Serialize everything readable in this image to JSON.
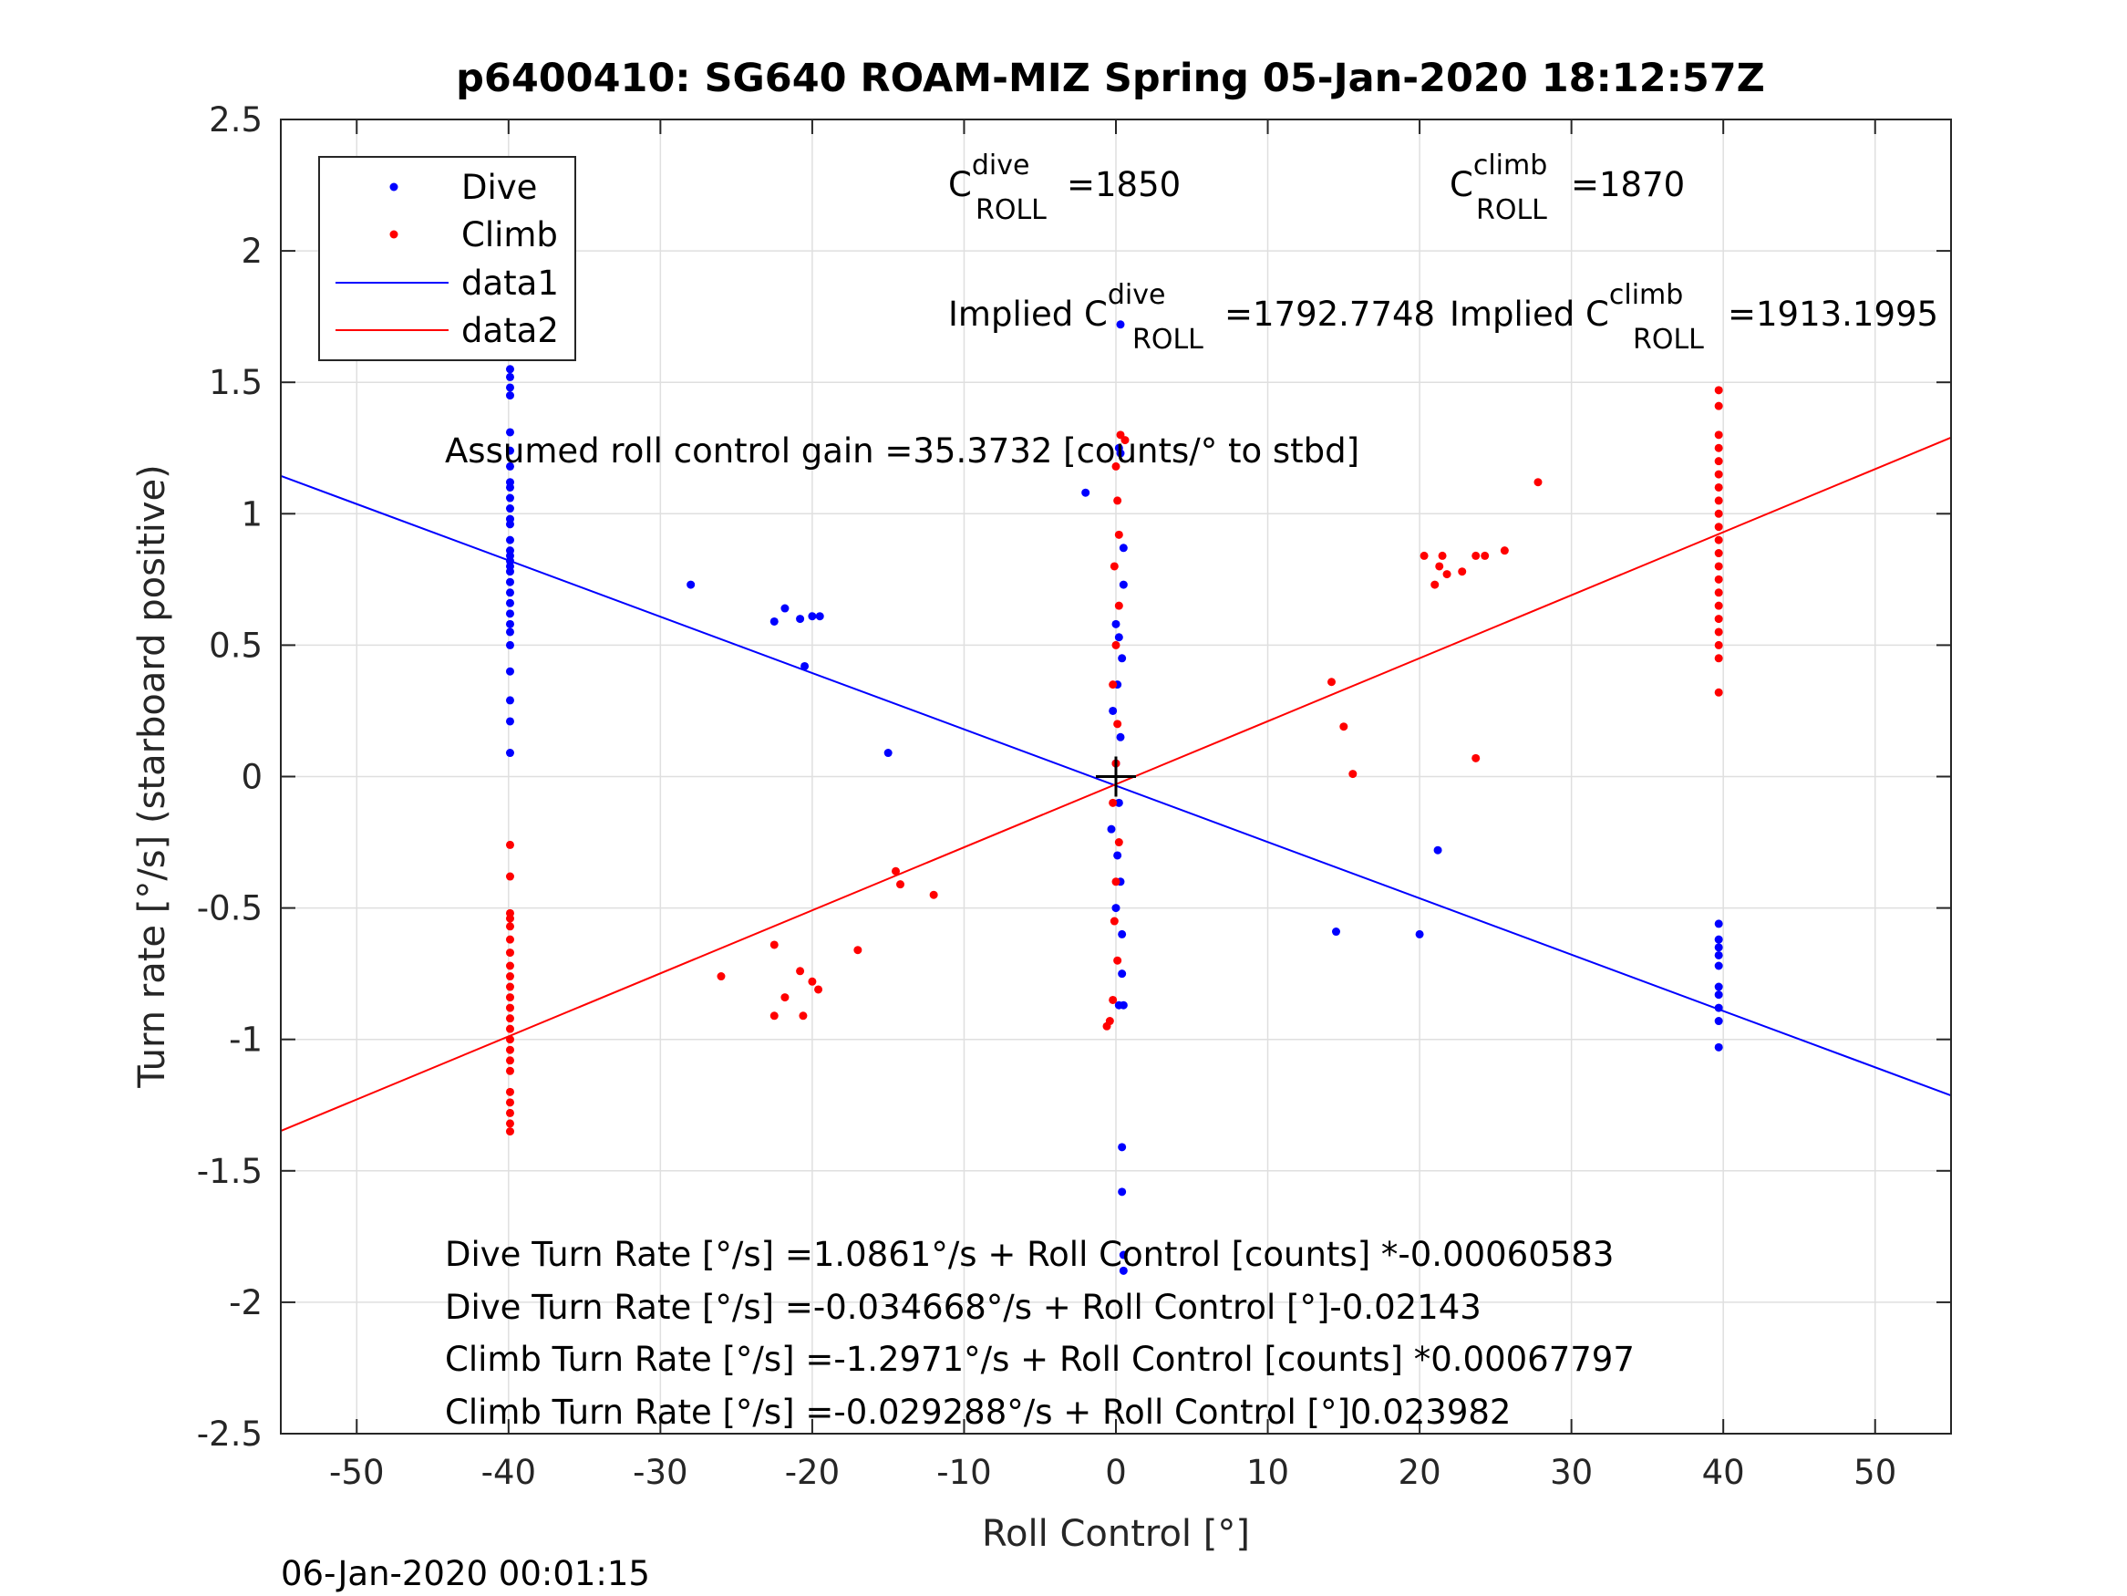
{
  "chart_data": {
    "type": "scatter",
    "title": "p6400410: SG640 ROAM-MIZ Spring 05-Jan-2020 18:12:57Z",
    "xlabel": "Roll Control [°]",
    "ylabel": "Turn rate [°/s] (starboard positive)",
    "xlim": [
      -55,
      55
    ],
    "ylim": [
      -2.5,
      2.5
    ],
    "xticks": [
      -50,
      -40,
      -30,
      -20,
      -10,
      0,
      10,
      20,
      30,
      40,
      50
    ],
    "yticks": [
      -2.5,
      -2,
      -1.5,
      -1,
      -0.5,
      0,
      0.5,
      1,
      1.5,
      2,
      2.5
    ],
    "xtick_labels": [
      "-50",
      "-40",
      "-30",
      "-20",
      "-10",
      "0",
      "10",
      "20",
      "30",
      "40",
      "50"
    ],
    "ytick_labels": [
      "-2.5",
      "-2",
      "-1.5",
      "-1",
      "-0.5",
      "0",
      "0.5",
      "1",
      "1.5",
      "2",
      "2.5"
    ],
    "grid": true,
    "legend_position": "top-left",
    "timestamp": "06-Jan-2020 00:01:15",
    "colors": {
      "dive": "#0000ff",
      "climb": "#ff0000",
      "marker": "#000000"
    },
    "series": [
      {
        "name": "Dive",
        "kind": "points",
        "color": "#0000ff",
        "points": [
          [
            -39.9,
            1.55
          ],
          [
            -39.9,
            1.52
          ],
          [
            -39.9,
            1.48
          ],
          [
            -39.9,
            1.45
          ],
          [
            -39.9,
            1.31
          ],
          [
            -39.9,
            1.24
          ],
          [
            -39.9,
            1.18
          ],
          [
            -39.9,
            1.12
          ],
          [
            -39.9,
            1.1
          ],
          [
            -39.9,
            1.06
          ],
          [
            -39.9,
            1.02
          ],
          [
            -39.9,
            0.98
          ],
          [
            -39.9,
            0.96
          ],
          [
            -39.9,
            0.9
          ],
          [
            -39.9,
            0.86
          ],
          [
            -39.9,
            0.84
          ],
          [
            -39.9,
            0.82
          ],
          [
            -39.9,
            0.8
          ],
          [
            -39.9,
            0.78
          ],
          [
            -39.9,
            0.74
          ],
          [
            -39.9,
            0.7
          ],
          [
            -39.9,
            0.66
          ],
          [
            -39.9,
            0.62
          ],
          [
            -39.9,
            0.58
          ],
          [
            -39.9,
            0.55
          ],
          [
            -39.9,
            0.5
          ],
          [
            -39.9,
            0.4
          ],
          [
            -39.9,
            0.29
          ],
          [
            -39.9,
            0.21
          ],
          [
            -39.9,
            0.09
          ],
          [
            -28,
            0.73
          ],
          [
            -22.5,
            0.59
          ],
          [
            -21.8,
            0.64
          ],
          [
            -20.8,
            0.6
          ],
          [
            -20.5,
            0.42
          ],
          [
            -20,
            0.61
          ],
          [
            -19.5,
            0.61
          ],
          [
            -15,
            0.09
          ],
          [
            -2,
            1.08
          ],
          [
            0.3,
            1.72
          ],
          [
            0.2,
            1.25
          ],
          [
            0.3,
            1.23
          ],
          [
            0.5,
            0.87
          ],
          [
            0.5,
            0.73
          ],
          [
            0,
            0.58
          ],
          [
            0.2,
            0.53
          ],
          [
            0.4,
            0.45
          ],
          [
            0.1,
            0.35
          ],
          [
            -0.2,
            0.25
          ],
          [
            0.3,
            0.15
          ],
          [
            0,
            0.05
          ],
          [
            0.2,
            -0.1
          ],
          [
            -0.3,
            -0.2
          ],
          [
            0.1,
            -0.3
          ],
          [
            0.3,
            -0.4
          ],
          [
            0,
            -0.5
          ],
          [
            0.4,
            -0.6
          ],
          [
            0.4,
            -0.75
          ],
          [
            0.2,
            -0.87
          ],
          [
            0.5,
            -0.87
          ],
          [
            0.4,
            -1.41
          ],
          [
            0.4,
            -1.58
          ],
          [
            0.5,
            -1.82
          ],
          [
            0.5,
            -1.88
          ],
          [
            14.5,
            -0.59
          ],
          [
            20,
            -0.6
          ],
          [
            21.2,
            -0.28
          ],
          [
            39.7,
            -0.56
          ],
          [
            39.7,
            -0.62
          ],
          [
            39.7,
            -0.65
          ],
          [
            39.7,
            -0.68
          ],
          [
            39.7,
            -0.72
          ],
          [
            39.7,
            -0.8
          ],
          [
            39.7,
            -0.83
          ],
          [
            39.7,
            -0.88
          ],
          [
            39.7,
            -0.93
          ],
          [
            39.7,
            -1.03
          ]
        ]
      },
      {
        "name": "Climb",
        "kind": "points",
        "color": "#ff0000",
        "points": [
          [
            -39.9,
            -0.26
          ],
          [
            -39.9,
            -0.38
          ],
          [
            -39.9,
            -0.52
          ],
          [
            -39.9,
            -0.54
          ],
          [
            -39.9,
            -0.57
          ],
          [
            -39.9,
            -0.62
          ],
          [
            -39.9,
            -0.67
          ],
          [
            -39.9,
            -0.72
          ],
          [
            -39.9,
            -0.76
          ],
          [
            -39.9,
            -0.8
          ],
          [
            -39.9,
            -0.84
          ],
          [
            -39.9,
            -0.88
          ],
          [
            -39.9,
            -0.92
          ],
          [
            -39.9,
            -0.96
          ],
          [
            -39.9,
            -1.0
          ],
          [
            -39.9,
            -1.04
          ],
          [
            -39.9,
            -1.08
          ],
          [
            -39.9,
            -1.12
          ],
          [
            -39.9,
            -1.2
          ],
          [
            -39.9,
            -1.24
          ],
          [
            -39.9,
            -1.28
          ],
          [
            -39.9,
            -1.32
          ],
          [
            -39.9,
            -1.35
          ],
          [
            -26,
            -0.76
          ],
          [
            -22.5,
            -0.64
          ],
          [
            -22.5,
            -0.91
          ],
          [
            -21.8,
            -0.84
          ],
          [
            -20.8,
            -0.74
          ],
          [
            -20.6,
            -0.91
          ],
          [
            -20,
            -0.78
          ],
          [
            -19.6,
            -0.81
          ],
          [
            -17,
            -0.66
          ],
          [
            -14.5,
            -0.36
          ],
          [
            -14.2,
            -0.41
          ],
          [
            -12,
            -0.45
          ],
          [
            0.3,
            1.3
          ],
          [
            0.6,
            1.28
          ],
          [
            0,
            1.18
          ],
          [
            0.1,
            1.05
          ],
          [
            0.2,
            0.92
          ],
          [
            -0.1,
            0.8
          ],
          [
            0.2,
            0.65
          ],
          [
            0,
            0.5
          ],
          [
            -0.2,
            0.35
          ],
          [
            0.1,
            0.2
          ],
          [
            0,
            0.05
          ],
          [
            -0.2,
            -0.1
          ],
          [
            0.2,
            -0.25
          ],
          [
            0,
            -0.4
          ],
          [
            -0.1,
            -0.55
          ],
          [
            0.1,
            -0.7
          ],
          [
            -0.2,
            -0.85
          ],
          [
            -0.4,
            -0.93
          ],
          [
            -0.6,
            -0.95
          ],
          [
            14.2,
            0.36
          ],
          [
            15,
            0.19
          ],
          [
            15.6,
            0.01
          ],
          [
            20.3,
            0.84
          ],
          [
            21,
            0.73
          ],
          [
            21.5,
            0.84
          ],
          [
            21.3,
            0.8
          ],
          [
            21.8,
            0.77
          ],
          [
            22.8,
            0.78
          ],
          [
            23.7,
            0.84
          ],
          [
            24.3,
            0.84
          ],
          [
            25.6,
            0.86
          ],
          [
            23.7,
            0.07
          ],
          [
            27.8,
            1.12
          ],
          [
            39.7,
            1.47
          ],
          [
            39.7,
            1.41
          ],
          [
            39.7,
            1.3
          ],
          [
            39.7,
            1.25
          ],
          [
            39.7,
            1.2
          ],
          [
            39.7,
            1.15
          ],
          [
            39.7,
            1.1
          ],
          [
            39.7,
            1.05
          ],
          [
            39.7,
            1.0
          ],
          [
            39.7,
            0.95
          ],
          [
            39.7,
            0.9
          ],
          [
            39.7,
            0.85
          ],
          [
            39.7,
            0.8
          ],
          [
            39.7,
            0.75
          ],
          [
            39.7,
            0.7
          ],
          [
            39.7,
            0.65
          ],
          [
            39.7,
            0.6
          ],
          [
            39.7,
            0.55
          ],
          [
            39.7,
            0.5
          ],
          [
            39.7,
            0.45
          ],
          [
            39.7,
            0.32
          ]
        ]
      },
      {
        "name": "data1",
        "kind": "line",
        "color": "#0000ff",
        "intercept": -0.034668,
        "slope": -0.02143
      },
      {
        "name": "data2",
        "kind": "line",
        "color": "#ff0000",
        "intercept": -0.029288,
        "slope": 0.023982
      }
    ],
    "center_marker": {
      "x": 0,
      "y": 0
    },
    "annotations": {
      "c_roll_dive": {
        "base": "C",
        "sup": "dive",
        "sub": "ROLL",
        "value": "=1850"
      },
      "c_roll_climb": {
        "base": "C",
        "sup": "climb",
        "sub": "ROLL",
        "value": "=1870"
      },
      "implied_dive": {
        "base": "Implied C",
        "sup": "dive",
        "sub": "ROLL",
        "value": "=1792.7748"
      },
      "implied_climb": {
        "base": "Implied C",
        "sup": "climb",
        "sub": "ROLL",
        "value": "=1913.1995"
      },
      "gain": "Assumed roll control gain =35.3732 [counts/° to stbd]",
      "eq1": "Dive Turn Rate [°/s] =1.0861°/s + Roll Control [counts] *-0.00060583",
      "eq2": "Dive Turn Rate [°/s] =-0.034668°/s + Roll Control [°]-0.02143",
      "eq3": "Climb Turn Rate [°/s] =-1.2971°/s + Roll Control [counts] *0.00067797",
      "eq4": "Climb Turn Rate [°/s] =-0.029288°/s + Roll Control [°]0.023982"
    }
  }
}
